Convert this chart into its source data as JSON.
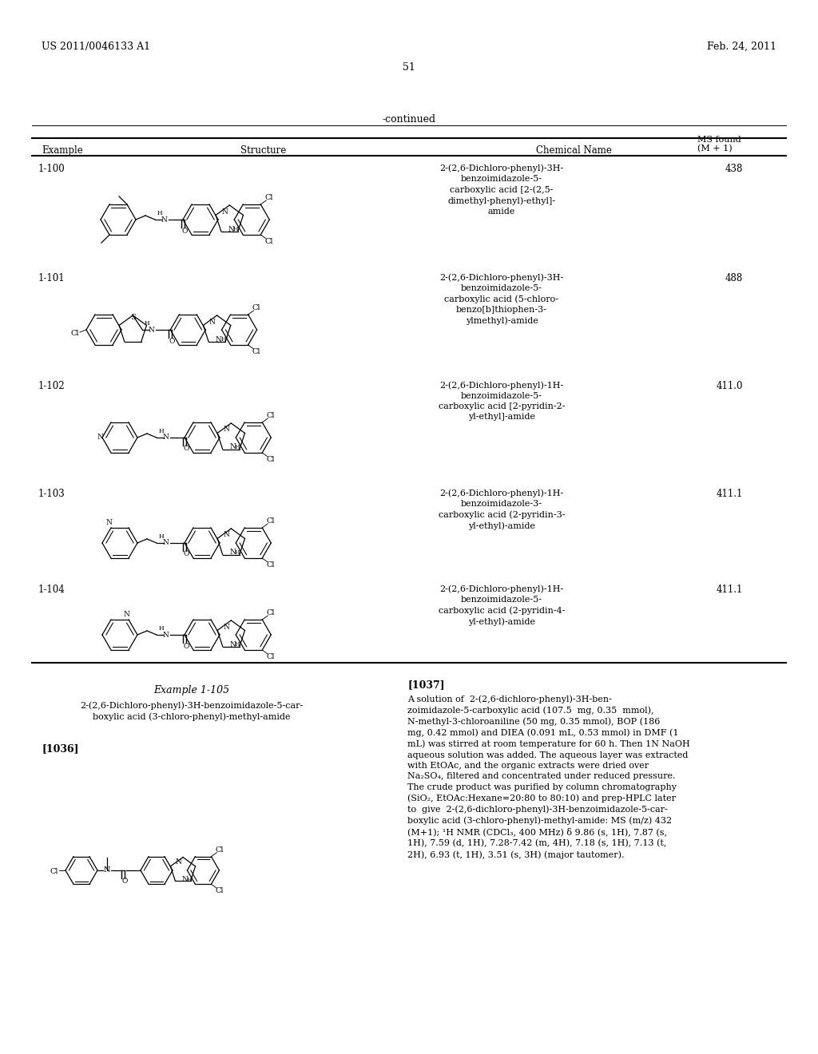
{
  "page_header_left": "US 2011/0046133 A1",
  "page_header_right": "Feb. 24, 2011",
  "page_number": "51",
  "continued_label": "-continued",
  "rows": [
    {
      "example": "1-100",
      "chemical_name": "2-(2,6-Dichloro-phenyl)-3H-\nbenzoimidazole-5-\ncarboxylic acid [2-(2,5-\ndimethyl-phenyl)-ethyl]-\namide",
      "ms": "438"
    },
    {
      "example": "1-101",
      "chemical_name": "2-(2,6-Dichloro-phenyl)-3H-\nbenzoimidazole-5-\ncarboxylic acid (5-chloro-\nbenzo[b]thiophen-3-\nylmethyl)-amide",
      "ms": "488"
    },
    {
      "example": "1-102",
      "chemical_name": "2-(2,6-Dichloro-phenyl)-1H-\nbenzoimidazole-5-\ncarboxylic acid [2-pyridin-2-\nyl-ethyl]-amide",
      "ms": "411.0"
    },
    {
      "example": "1-103",
      "chemical_name": "2-(2,6-Dichloro-phenyl)-1H-\nbenzoimidazole-3-\ncarboxylic acid (2-pyridin-3-\nyl-ethyl)-amide",
      "ms": "411.1"
    },
    {
      "example": "1-104",
      "chemical_name": "2-(2,6-Dichloro-phenyl)-1H-\nbenzoimidazole-5-\ncarboxylic acid (2-pyridin-4-\nyl-ethyl)-amide",
      "ms": "411.1"
    }
  ],
  "example_section_title": "Example 1-105",
  "example_compound_name": "2-(2,6-Dichloro-phenyl)-3H-benzoimidazole-5-car-\nboxylic acid (3-chloro-phenyl)-methyl-amide",
  "paragraph_num_1": "[1036]",
  "paragraph_num_2": "[1037]",
  "paragraph_text": "A solution of  2-(2,6-dichloro-phenyl)-3H-ben-\nzoimidazole-5-carboxylic acid (107.5  mg, 0.35  mmol),\nN-methyl-3-chloroaniline (50 mg, 0.35 mmol), BOP (186\nmg, 0.42 mmol) and DIEA (0.091 mL, 0.53 mmol) in DMF (1\nmL) was stirred at room temperature for 60 h. Then 1N NaOH\naqueous solution was added. The aqueous layer was extracted\nwith EtOAc, and the organic extracts were dried over\nNa₂SO₄, filtered and concentrated under reduced pressure.\nThe crude product was purified by column chromatography\n(SiO₂, EtOAc:Hexane=20:80 to 80:10) and prep-HPLC later\nto  give  2-(2,6-dichloro-phenyl)-3H-benzoimidazole-5-car-\nboxylic acid (3-chloro-phenyl)-methyl-amide: MS (m/z) 432\n(M+1); ¹H NMR (CDCl₃, 400 MHz) δ 9.86 (s, 1H), 7.87 (s,\n1H), 7.59 (d, 1H), 7.28-7.42 (m, 4H), 7.18 (s, 1H), 7.13 (t,\n2H), 6.93 (t, 1H), 3.51 (s, 3H) (major tautomer).",
  "bg_color": "#ffffff",
  "text_color": "#000000"
}
